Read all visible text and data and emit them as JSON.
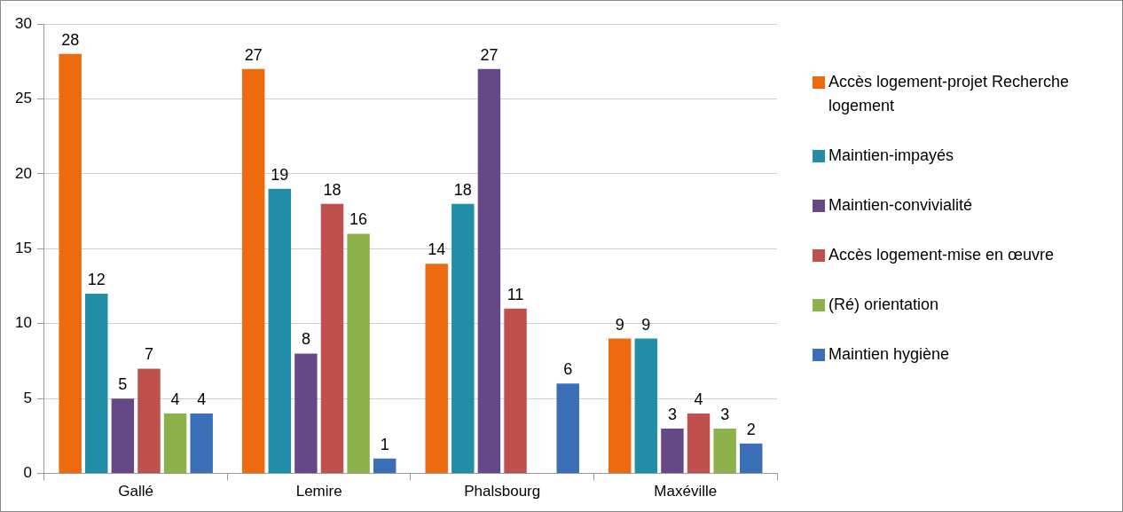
{
  "chart_data": {
    "type": "bar",
    "categories": [
      "Gallé",
      "Lemire",
      "Phalsbourg",
      "Maxéville"
    ],
    "series": [
      {
        "name": "Accès logement-projet Recherche logement",
        "color": "#ee6a0e",
        "values": [
          28,
          27,
          14,
          9
        ]
      },
      {
        "name": "Maintien-impayés",
        "color": "#1f8ea6",
        "values": [
          12,
          19,
          18,
          9
        ]
      },
      {
        "name": "Maintien-convivialité",
        "color": "#664889",
        "values": [
          5,
          8,
          27,
          3
        ]
      },
      {
        "name": "Accès logement-mise en œuvre",
        "color": "#c0504d",
        "values": [
          7,
          18,
          11,
          4
        ]
      },
      {
        "name": "(Ré) orientation",
        "color": "#8db24c",
        "values": [
          4,
          16,
          null,
          3
        ]
      },
      {
        "name": "Maintien hygiène",
        "color": "#3b70b8",
        "values": [
          4,
          1,
          6,
          2
        ]
      }
    ],
    "ylim": [
      0,
      30
    ],
    "yticks": [
      0,
      5,
      10,
      15,
      20,
      25,
      30
    ],
    "grid": "y",
    "legend": "right",
    "data_labels": true
  }
}
